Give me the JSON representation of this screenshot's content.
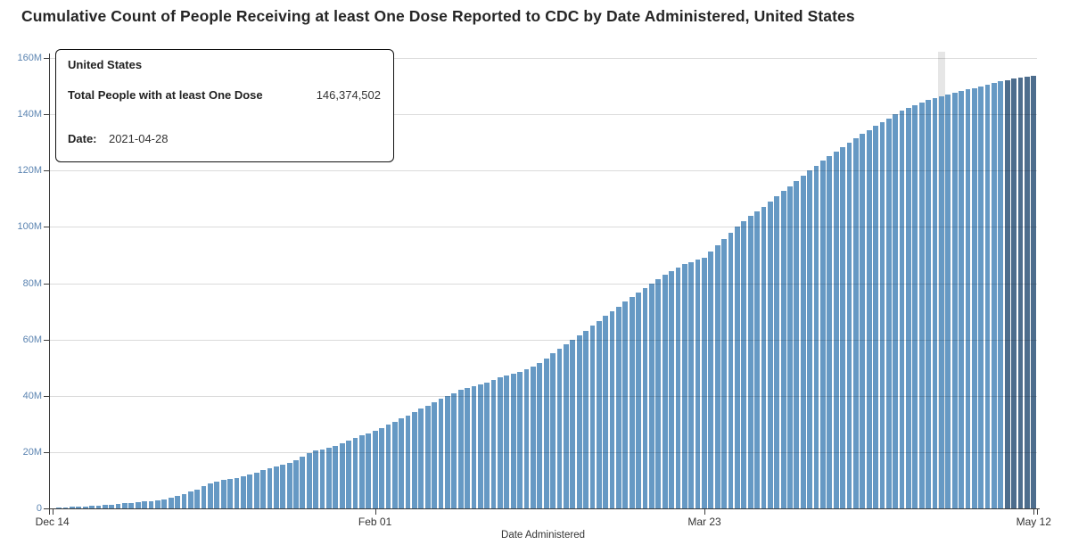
{
  "title": "Cumulative Count of People Receiving at least One Dose Reported to CDC by Date Administered, United States",
  "tooltip": {
    "region": "United States",
    "metric_label": "Total People with at least One Dose",
    "metric_value": "146,374,502",
    "date_label": "Date:",
    "date_value": "2021-04-28"
  },
  "x_axis": {
    "label": "Date Administered",
    "ticks": [
      {
        "label": "Dec 14",
        "day": 0
      },
      {
        "label": "Feb 01",
        "day": 49
      },
      {
        "label": "Mar 23",
        "day": 99
      },
      {
        "label": "May 12",
        "day": 149
      }
    ]
  },
  "y_axis": {
    "ticks": [
      {
        "label": "0",
        "m": 0
      },
      {
        "label": "20M",
        "m": 20
      },
      {
        "label": "40M",
        "m": 40
      },
      {
        "label": "60M",
        "m": 60
      },
      {
        "label": "80M",
        "m": 80
      },
      {
        "label": "100M",
        "m": 100
      },
      {
        "label": "120M",
        "m": 120
      },
      {
        "label": "140M",
        "m": 140
      },
      {
        "label": "160M",
        "m": 160
      }
    ]
  },
  "colors": {
    "bar": "#6699c4",
    "bar_recent": "#4d6d8d",
    "hover_band": "#e6e6e6",
    "axis": "#3c3c3c",
    "grid_rgba": "rgba(0,0,0,0.14)",
    "y_tick_text": "#5b84b1",
    "text": "#333333"
  },
  "chart_data": {
    "type": "bar",
    "title": "Cumulative Count of People Receiving at least One Dose Reported to CDC by Date Administered, United States",
    "xlabel": "Date Administered",
    "ylabel": "",
    "unit": "people, millions (cumulative)",
    "start_date": "2020-12-14",
    "end_date": "2021-05-12",
    "ylim": [
      0,
      160000000
    ],
    "grid": true,
    "highlighted_date": "2021-04-28",
    "highlighted_value": 146374502,
    "recent_dark_bar_count": 5,
    "values_millions": [
      0.15,
      0.25,
      0.35,
      0.5,
      0.6,
      0.75,
      0.9,
      1.05,
      1.2,
      1.4,
      1.6,
      1.8,
      2.0,
      2.2,
      2.4,
      2.6,
      2.9,
      3.2,
      3.8,
      4.4,
      5.1,
      5.9,
      6.8,
      7.8,
      8.9,
      9.5,
      10.1,
      10.5,
      10.9,
      11.4,
      12.0,
      12.8,
      13.6,
      14.3,
      14.9,
      15.6,
      16.2,
      17.2,
      18.4,
      19.6,
      20.5,
      21.0,
      21.6,
      22.3,
      23.1,
      24.0,
      25.0,
      25.9,
      26.7,
      27.5,
      28.6,
      29.7,
      30.8,
      31.9,
      33.0,
      34.2,
      35.4,
      36.5,
      37.7,
      38.9,
      40.0,
      41.0,
      42.0,
      42.8,
      43.4,
      44.0,
      44.8,
      45.7,
      46.6,
      47.3,
      47.9,
      48.5,
      49.3,
      50.4,
      51.8,
      53.4,
      55.0,
      56.7,
      58.4,
      60.0,
      61.6,
      63.2,
      64.9,
      66.6,
      68.3,
      70.0,
      71.7,
      73.4,
      75.1,
      76.8,
      78.4,
      80.0,
      81.5,
      83.0,
      84.4,
      85.7,
      86.8,
      87.6,
      88.3,
      89.0,
      91.2,
      93.4,
      95.6,
      97.8,
      100.0,
      102.0,
      103.8,
      105.5,
      107.2,
      109.0,
      111.0,
      112.8,
      114.5,
      116.3,
      118.2,
      120.0,
      121.8,
      123.5,
      125.2,
      126.8,
      128.4,
      130.0,
      131.5,
      133.0,
      134.4,
      135.8,
      137.2,
      138.6,
      140.0,
      141.2,
      142.3,
      143.3,
      144.2,
      145.0,
      145.8,
      146.4,
      147.0,
      147.6,
      148.2,
      148.8,
      149.4,
      150.0,
      150.6,
      151.2,
      151.7,
      152.2,
      152.7,
      153.1,
      153.4,
      153.7
    ]
  }
}
